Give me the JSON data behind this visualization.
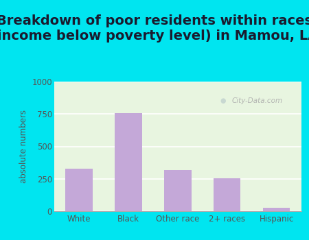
{
  "title": "Breakdown of poor residents within races\n(income below poverty level) in Mamou, LA",
  "categories": [
    "White",
    "Black",
    "Other race",
    "2+ races",
    "Hispanic"
  ],
  "values": [
    330,
    755,
    320,
    255,
    25
  ],
  "bar_color": "#c4a8d8",
  "ylabel": "absolute numbers",
  "ylim": [
    0,
    1000
  ],
  "yticks": [
    0,
    250,
    500,
    750,
    1000
  ],
  "bg_outer": "#00e5f0",
  "bg_inner": "#e8f5e0",
  "title_fontsize": 14,
  "title_fontweight": "bold",
  "title_color": "#1a1a2e",
  "watermark": "City-Data.com",
  "ylabel_color": "#555555",
  "tick_color": "#555555"
}
